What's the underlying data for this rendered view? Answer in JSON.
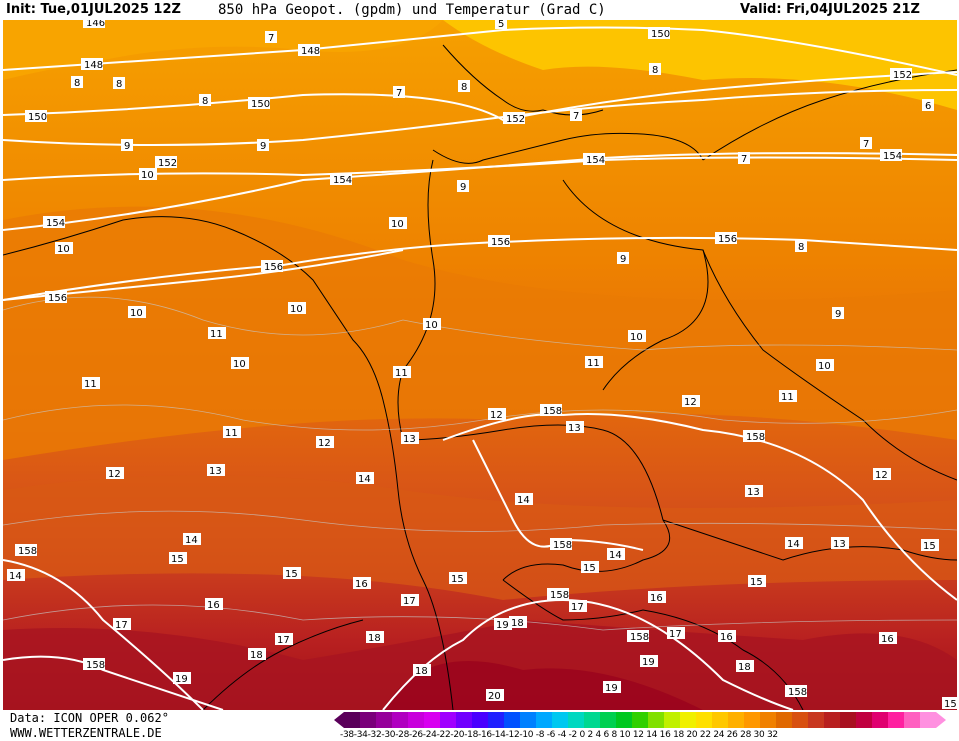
{
  "header": {
    "init": "Init: Tue,01JUL2025 12Z",
    "title": "850 hPa Geopot. (gpdm) und Temperatur (Grad C)",
    "valid": "Valid: Fri,04JUL2025 21Z"
  },
  "footer": {
    "data_line": "Data: ICON OPER 0.062°",
    "url": "WWW.WETTERZENTRALE.DE"
  },
  "colorbar": {
    "ticks": "-38-34-32-30-28-26-24-22-20-18-16-14-12-10 -8 -6 -4 -2  0  2  4  6  8 10 12 14 16 18 20 22 24 26 28 30 32",
    "colors": [
      "#5a005a",
      "#7a007a",
      "#96009a",
      "#b000c0",
      "#c800dc",
      "#d800f0",
      "#a000ff",
      "#7000ff",
      "#4a00ff",
      "#2020ff",
      "#0050ff",
      "#0080ff",
      "#00a8ff",
      "#00c8f0",
      "#00d8c0",
      "#00d890",
      "#00d050",
      "#00c820",
      "#30d000",
      "#80e000",
      "#c0f000",
      "#f0f000",
      "#ffe000",
      "#ffc800",
      "#ffb000",
      "#ff9800",
      "#f08000",
      "#e06800",
      "#d85010",
      "#c83820",
      "#b82020",
      "#a81020",
      "#c00040",
      "#e00070",
      "#ff20a0",
      "#ff60c0",
      "#ff90e0"
    ]
  },
  "geopotential_labels": [
    "146",
    "148",
    "150",
    "152",
    "154",
    "156",
    "158",
    "5"
  ],
  "temperature_labels": [
    "6",
    "7",
    "8",
    "9",
    "10",
    "11",
    "12",
    "13",
    "14",
    "15",
    "16",
    "17",
    "18",
    "19",
    "20"
  ]
}
